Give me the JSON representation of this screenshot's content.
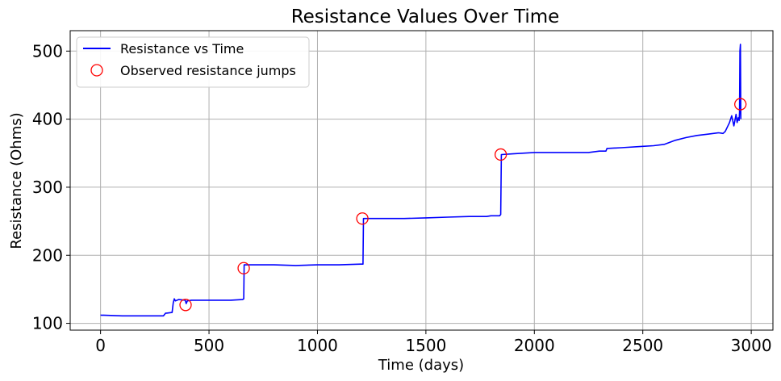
{
  "chart_data": {
    "type": "line",
    "title": "Resistance Values Over Time",
    "xlabel": "Time (days)",
    "ylabel": "Resistance (Ohms)",
    "xlim": [
      -140,
      3100
    ],
    "ylim": [
      90,
      530
    ],
    "xticks": [
      0,
      500,
      1000,
      1500,
      2000,
      2500,
      3000
    ],
    "yticks": [
      100,
      200,
      300,
      400,
      500
    ],
    "grid": true,
    "legend_position": "top-left",
    "colors": {
      "line": "#0000ff",
      "marker": "#ff0000"
    },
    "series": [
      {
        "name": "Resistance vs Time",
        "x": [
          0,
          100,
          200,
          290,
          300,
          305,
          330,
          335,
          340,
          345,
          360,
          390,
          395,
          400,
          420,
          450,
          500,
          550,
          600,
          655,
          660,
          662,
          700,
          800,
          900,
          1000,
          1100,
          1200,
          1210,
          1212,
          1250,
          1300,
          1400,
          1500,
          1600,
          1700,
          1780,
          1800,
          1840,
          1845,
          1848,
          1900,
          2000,
          2100,
          2200,
          2250,
          2300,
          2330,
          2335,
          2400,
          2500,
          2550,
          2600,
          2650,
          2700,
          2750,
          2800,
          2850,
          2870,
          2880,
          2900,
          2910,
          2920,
          2930,
          2935,
          2940,
          2944,
          2946,
          2948,
          2950,
          2952
        ],
        "y": [
          112,
          111,
          111,
          111,
          115,
          115,
          116,
          130,
          136,
          133,
          135,
          134,
          129,
          133,
          134,
          134,
          134,
          134,
          134,
          135,
          136,
          186,
          186,
          186,
          185,
          186,
          186,
          187,
          187,
          254,
          254,
          254,
          254,
          255,
          256,
          257,
          257,
          258,
          258,
          260,
          348,
          349,
          351,
          351,
          351,
          351,
          353,
          353,
          357,
          358,
          360,
          361,
          363,
          369,
          373,
          376,
          378,
          380,
          379,
          382,
          395,
          405,
          390,
          407,
          395,
          402,
          398,
          410,
          500,
          510,
          400
        ]
      },
      {
        "name": "Observed resistance jumps",
        "x": [
          392,
          660,
          1207,
          1845,
          2950
        ],
        "y": [
          127,
          181,
          254,
          348,
          422
        ]
      }
    ]
  }
}
